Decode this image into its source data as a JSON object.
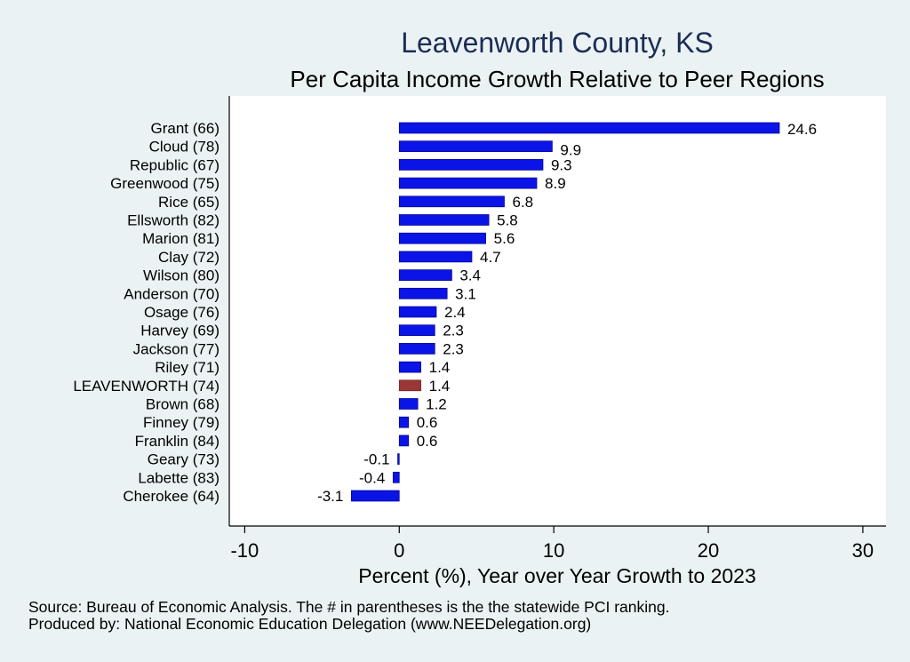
{
  "chart_data": {
    "type": "bar",
    "orientation": "horizontal",
    "title": "Leavenworth County, KS",
    "subtitle": "Per Capita Income Growth Relative to Peer Regions",
    "xlabel": "Percent (%), Year over Year Growth to 2023",
    "xlim": [
      -11,
      31.5
    ],
    "xticks": [
      -10,
      0,
      10,
      20,
      30
    ],
    "categories": [
      "Grant (66)",
      "Cloud (78)",
      "Republic (67)",
      "Greenwood (75)",
      "Rice (65)",
      "Ellsworth (82)",
      "Marion (81)",
      "Clay (72)",
      "Wilson (80)",
      "Anderson (70)",
      "Osage (76)",
      "Harvey (69)",
      "Jackson (77)",
      "Riley (71)",
      "LEAVENWORTH (74)",
      "Brown (68)",
      "Finney (79)",
      "Franklin (84)",
      "Geary (73)",
      "Labette (83)",
      "Cherokee (64)"
    ],
    "values": [
      24.6,
      9.9,
      9.3,
      8.9,
      6.8,
      5.8,
      5.6,
      4.7,
      3.4,
      3.1,
      2.4,
      2.3,
      2.3,
      1.4,
      1.4,
      1.2,
      0.6,
      0.6,
      -0.1,
      -0.4,
      -3.1
    ],
    "value_labels": [
      "24.6",
      "9.9",
      "9.3",
      "8.9",
      "6.8",
      "5.8",
      "5.6",
      "4.7",
      "3.4",
      "3.1",
      "2.4",
      "2.3",
      "2.3",
      "1.4",
      "1.4",
      "1.2",
      "0.6",
      "0.6",
      "-0.1",
      "-0.4",
      "-3.1"
    ],
    "highlight": "LEAVENWORTH (74)",
    "colors": {
      "bar": "#0a14e6",
      "highlight": "#9b3636",
      "title": "#1b2d55",
      "background": "#eaf2f3",
      "plot": "#ffffff"
    },
    "grid": false,
    "notes": [
      "Source: Bureau of Economic Analysis. The # in parentheses is the the statewide PCI ranking.",
      "Produced by: National Economic Education Delegation (www.NEEDelegation.org)"
    ]
  }
}
